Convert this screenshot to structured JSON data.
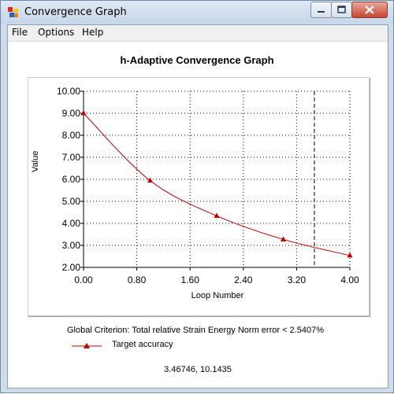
{
  "window": {
    "title": "Convergence Graph"
  },
  "menu": {
    "file": "File",
    "options": "Options",
    "help": "Help"
  },
  "icons": {
    "app": "app-icon",
    "minimize": "minimize-icon",
    "maximize": "maximize-icon",
    "close": "close-icon"
  },
  "colors": {
    "series": "#c00000",
    "title_bar": "#cfdbe9",
    "close_button": "#c8452f"
  },
  "footer": {
    "criterion": "Global Criterion: Total relative Strain Energy Norm error < 2.5407%",
    "legend_label": "Target accuracy",
    "cursor_readout": "3.46746, 10.1435"
  },
  "chart_data": {
    "type": "line",
    "title": "h-Adaptive Convergence Graph",
    "xlabel": "Loop Number",
    "ylabel": "Value",
    "xlim": [
      0,
      4
    ],
    "ylim": [
      2,
      10
    ],
    "x_ticks": [
      "0.00",
      "0.80",
      "1.60",
      "2.40",
      "3.20",
      "4.00"
    ],
    "y_ticks": [
      "2.00",
      "3.00",
      "4.00",
      "5.00",
      "6.00",
      "7.00",
      "8.00",
      "9.00",
      "10.00"
    ],
    "grid": true,
    "series": [
      {
        "name": "Target accuracy",
        "color": "#c00000",
        "marker": "triangle",
        "x": [
          0,
          1,
          2,
          3,
          4
        ],
        "y": [
          9.0,
          5.94,
          4.34,
          3.27,
          2.54
        ]
      }
    ],
    "cursor_line_x": 3.46746
  }
}
